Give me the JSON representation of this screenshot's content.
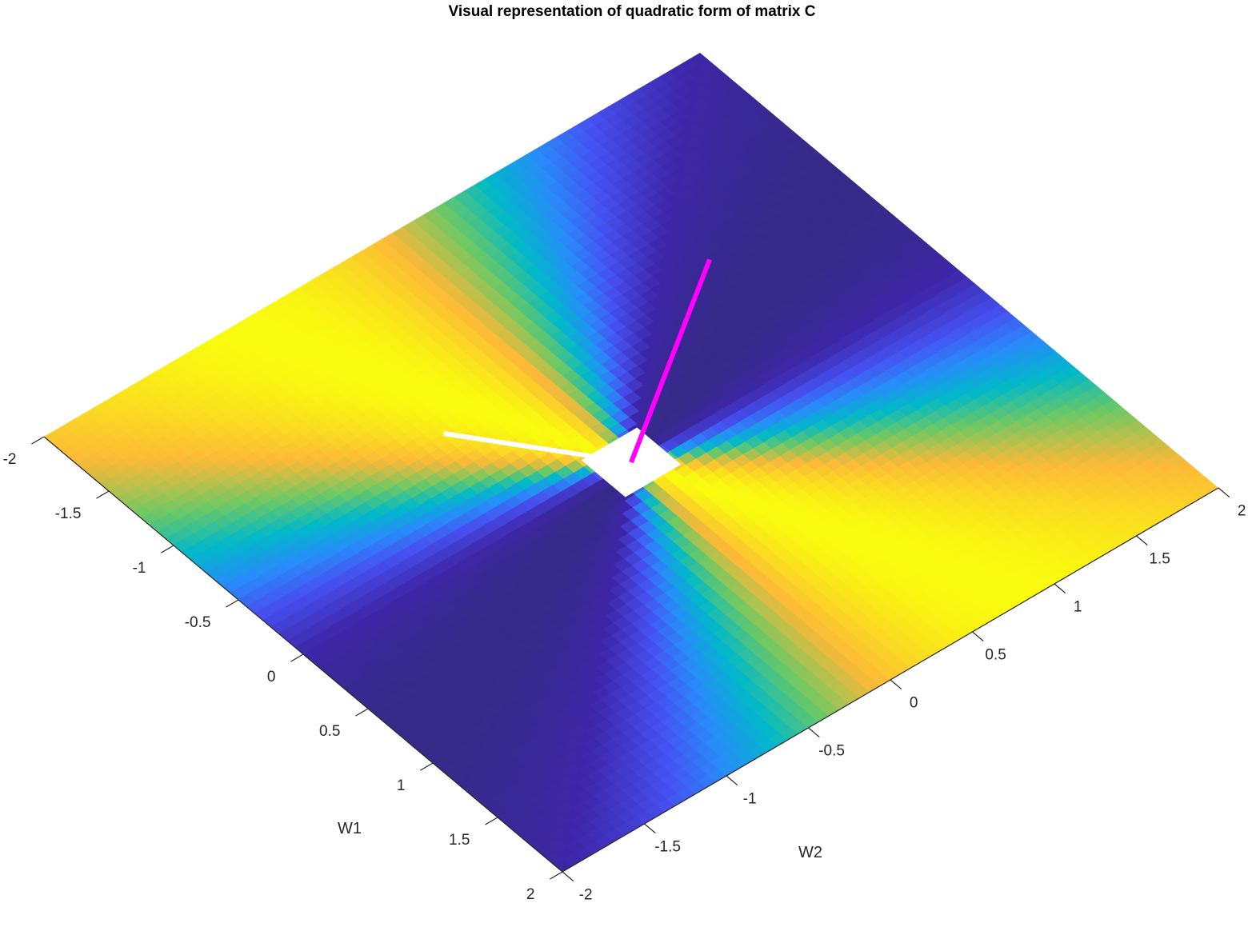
{
  "chart_data": {
    "type": "heatmap",
    "title": "Visual representation of quadratic form of matrix C",
    "xlabel": "W1",
    "ylabel": "W2",
    "xlim": [
      -2,
      2
    ],
    "ylim": [
      -2,
      2
    ],
    "w1_ticks": [
      {
        "value": -2,
        "label": "-2"
      },
      {
        "value": -1.5,
        "label": "-1.5"
      },
      {
        "value": -1,
        "label": "-1"
      },
      {
        "value": -0.5,
        "label": "-0.5"
      },
      {
        "value": 0,
        "label": "0"
      },
      {
        "value": 0.5,
        "label": "0.5"
      },
      {
        "value": 1,
        "label": "1"
      },
      {
        "value": 1.5,
        "label": "1.5"
      },
      {
        "value": 2,
        "label": "2"
      }
    ],
    "w2_ticks": [
      {
        "value": -2,
        "label": "-2"
      },
      {
        "value": -1.5,
        "label": "-1.5"
      },
      {
        "value": -1,
        "label": "-1"
      },
      {
        "value": -0.5,
        "label": "-0.5"
      },
      {
        "value": 0,
        "label": "0"
      },
      {
        "value": 0.5,
        "label": "0.5"
      },
      {
        "value": 1,
        "label": "1"
      },
      {
        "value": 1.5,
        "label": "1.5"
      },
      {
        "value": 2,
        "label": "2"
      }
    ],
    "colormap": "parula",
    "grid": false,
    "vectors": [
      {
        "color": "#ffffff",
        "from": [
          0,
          0
        ],
        "to": [
          -0.75,
          -0.55
        ]
      },
      {
        "color": "#ff00ff",
        "from": [
          0,
          0
        ],
        "to": [
          -0.85,
          1.15
        ]
      }
    ]
  }
}
